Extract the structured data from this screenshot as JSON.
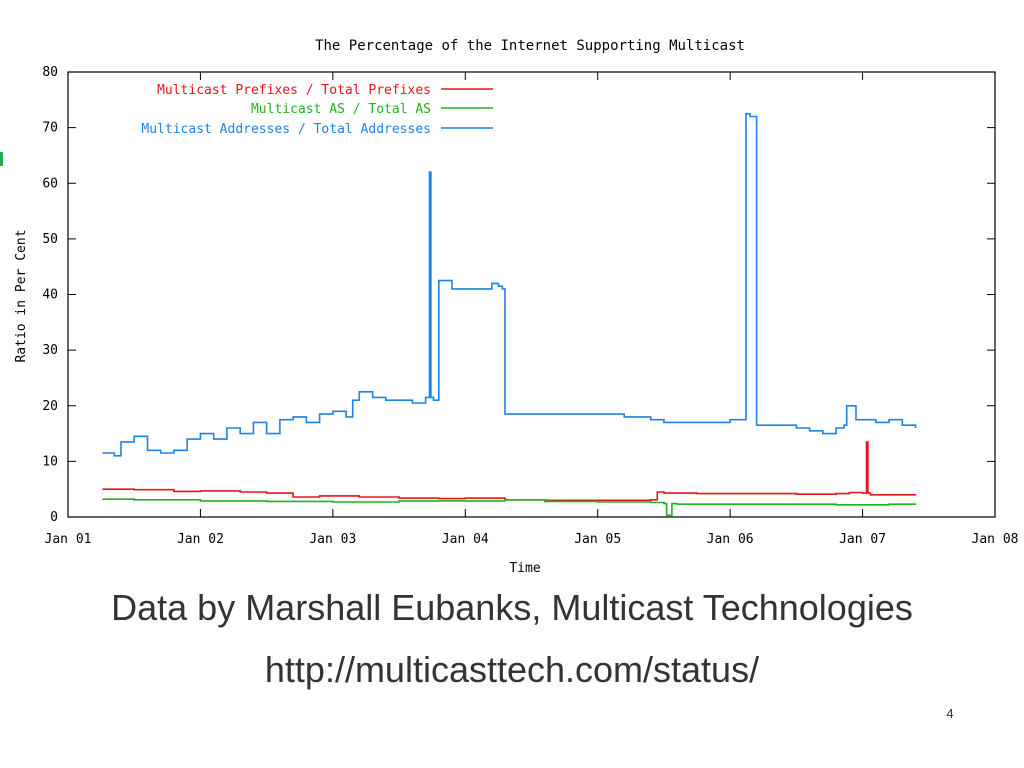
{
  "chart_data": {
    "type": "line",
    "title": "The Percentage of the Internet Supporting Multicast",
    "xlabel": "Time",
    "ylabel": "Ratio in Per Cent",
    "xlim": [
      2001.0,
      2008.0
    ],
    "ylim": [
      0,
      80
    ],
    "grid": false,
    "legend_placement": "top-left",
    "x_ticks": [
      {
        "value": 2001,
        "label": "Jan 01"
      },
      {
        "value": 2002,
        "label": "Jan 02"
      },
      {
        "value": 2003,
        "label": "Jan 03"
      },
      {
        "value": 2004,
        "label": "Jan 04"
      },
      {
        "value": 2005,
        "label": "Jan 05"
      },
      {
        "value": 2006,
        "label": "Jan 06"
      },
      {
        "value": 2007,
        "label": "Jan 07"
      },
      {
        "value": 2008,
        "label": "Jan 08"
      }
    ],
    "y_ticks": [
      0,
      10,
      20,
      30,
      40,
      50,
      60,
      70,
      80
    ],
    "series": [
      {
        "name": "Multicast Prefixes / Total Prefixes",
        "color": "#e8141e",
        "x": [
          2001.26,
          2001.5,
          2001.8,
          2002.0,
          2002.3,
          2002.5,
          2002.7,
          2002.9,
          2003.0,
          2003.2,
          2003.5,
          2003.8,
          2004.0,
          2004.3,
          2004.6,
          2005.0,
          2005.3,
          2005.4,
          2005.45,
          2005.5,
          2005.6,
          2005.75,
          2006.0,
          2006.5,
          2006.8,
          2006.9,
          2007.0,
          2007.03,
          2007.04,
          2007.06,
          2007.2,
          2007.4
        ],
        "y": [
          5.0,
          4.9,
          4.6,
          4.7,
          4.5,
          4.3,
          3.6,
          3.8,
          3.8,
          3.6,
          3.4,
          3.3,
          3.4,
          3.1,
          3.0,
          3.0,
          3.0,
          3.1,
          4.5,
          4.3,
          4.3,
          4.2,
          4.2,
          4.1,
          4.2,
          4.4,
          4.3,
          13.5,
          4.3,
          4.0,
          4.0,
          3.9
        ]
      },
      {
        "name": "Multicast AS / Total AS",
        "color": "#1eb41e",
        "x": [
          2001.26,
          2001.5,
          2002.0,
          2002.5,
          2003.0,
          2003.5,
          2004.0,
          2004.3,
          2004.6,
          2005.0,
          2005.4,
          2005.5,
          2005.52,
          2005.56,
          2005.6,
          2006.0,
          2006.5,
          2006.8,
          2007.0,
          2007.2,
          2007.4
        ],
        "y": [
          3.2,
          3.1,
          2.9,
          2.8,
          2.7,
          2.9,
          2.9,
          3.1,
          2.8,
          2.7,
          2.6,
          2.4,
          0.3,
          2.4,
          2.3,
          2.3,
          2.3,
          2.2,
          2.2,
          2.3,
          2.2
        ]
      },
      {
        "name": "Multicast Addresses / Total Addresses",
        "color": "#1e82e6",
        "x": [
          2001.26,
          2001.35,
          2001.4,
          2001.5,
          2001.6,
          2001.7,
          2001.8,
          2001.9,
          2002.0,
          2002.1,
          2002.2,
          2002.3,
          2002.4,
          2002.5,
          2002.6,
          2002.7,
          2002.8,
          2002.9,
          2003.0,
          2003.1,
          2003.15,
          2003.2,
          2003.3,
          2003.4,
          2003.5,
          2003.6,
          2003.7,
          2003.73,
          2003.74,
          2003.76,
          2003.8,
          2003.9,
          2004.0,
          2004.1,
          2004.2,
          2004.25,
          2004.28,
          2004.3,
          2004.5,
          2004.8,
          2005.0,
          2005.2,
          2005.4,
          2005.5,
          2005.6,
          2005.8,
          2006.0,
          2006.1,
          2006.12,
          2006.15,
          2006.2,
          2006.5,
          2006.6,
          2006.7,
          2006.8,
          2006.86,
          2006.88,
          2006.95,
          2007.0,
          2007.02,
          2007.05,
          2007.1,
          2007.15,
          2007.2,
          2007.25,
          2007.3,
          2007.4
        ],
        "y": [
          11.5,
          11.0,
          13.5,
          14.5,
          12.0,
          11.5,
          12.0,
          14.0,
          15.0,
          14.0,
          16.0,
          15.0,
          17.0,
          15.0,
          17.5,
          18.0,
          17.0,
          18.5,
          19.0,
          18.0,
          21.0,
          22.5,
          21.5,
          21.0,
          21.0,
          20.5,
          21.5,
          62.0,
          21.5,
          21.0,
          42.5,
          41.0,
          41.0,
          41.0,
          42.0,
          41.5,
          41.0,
          18.5,
          18.5,
          18.5,
          18.5,
          18.0,
          17.5,
          17.0,
          17.0,
          17.0,
          17.5,
          17.5,
          72.5,
          72.0,
          16.5,
          16.0,
          15.5,
          15.0,
          16.0,
          16.5,
          20.0,
          17.5,
          17.5,
          17.5,
          17.5,
          17.0,
          17.0,
          17.5,
          17.5,
          16.5,
          16.0
        ]
      }
    ]
  },
  "captions": {
    "line1": "Data by Marshall Eubanks, Multicast Technologies",
    "line2": "http://multicasttech.com/status/"
  },
  "slide_number": "4"
}
